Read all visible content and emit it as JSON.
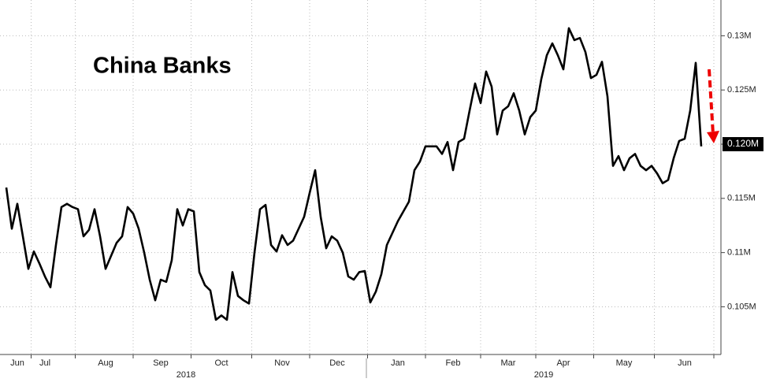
{
  "chart_data": {
    "type": "line",
    "title": "China Banks",
    "categories": [
      null,
      null,
      "Jun",
      null,
      null,
      null,
      null,
      "Jul",
      null,
      null,
      null,
      null,
      null,
      null,
      null,
      null,
      null,
      null,
      "Aug",
      null,
      null,
      null,
      null,
      null,
      null,
      null,
      null,
      null,
      "Sep",
      null,
      null,
      null,
      null,
      null,
      null,
      null,
      null,
      null,
      null,
      "Oct",
      null,
      null,
      null,
      null,
      null,
      null,
      null,
      null,
      null,
      null,
      "Nov",
      null,
      null,
      null,
      null,
      null,
      null,
      null,
      null,
      null,
      "Dec",
      null,
      null,
      null,
      null,
      null,
      null,
      null,
      null,
      null,
      null,
      "Jan",
      null,
      null,
      null,
      null,
      null,
      null,
      null,
      null,
      null,
      "Feb",
      null,
      null,
      null,
      null,
      null,
      null,
      null,
      null,
      null,
      "Mar",
      null,
      null,
      null,
      null,
      null,
      null,
      null,
      null,
      null,
      "Apr",
      null,
      null,
      null,
      null,
      null,
      null,
      null,
      null,
      null,
      null,
      "May",
      null,
      null,
      null,
      null,
      null,
      null,
      null,
      null,
      null,
      null,
      "Jun",
      null,
      null,
      null
    ],
    "x_group_labels": [
      "2018",
      "2019"
    ],
    "series": [
      {
        "name": "China Banks",
        "color": "#000000",
        "values": [
          0.116,
          0.1122,
          0.1145,
          0.1115,
          0.1085,
          0.1101,
          0.109,
          0.1078,
          0.1068,
          0.1107,
          0.1142,
          0.1145,
          0.1142,
          0.114,
          0.1115,
          0.1121,
          0.114,
          0.1115,
          0.1085,
          0.1097,
          0.1109,
          0.1115,
          0.1142,
          0.1136,
          0.1122,
          0.11,
          0.1075,
          0.1056,
          0.1075,
          0.1073,
          0.1093,
          0.114,
          0.1125,
          0.114,
          0.1138,
          0.1082,
          0.107,
          0.1065,
          0.1038,
          0.1042,
          0.1038,
          0.1082,
          0.106,
          0.1056,
          0.1053,
          0.11,
          0.114,
          0.1144,
          0.1107,
          0.1101,
          0.1116,
          0.1107,
          0.1111,
          0.1122,
          0.1133,
          0.1155,
          0.1176,
          0.1133,
          0.1104,
          0.1115,
          0.1111,
          0.11,
          0.1078,
          0.1075,
          0.1082,
          0.1083,
          0.1054,
          0.1064,
          0.108,
          0.1107,
          0.1118,
          0.1129,
          0.1138,
          0.1147,
          0.1176,
          0.1184,
          0.1198,
          0.1198,
          0.1198,
          0.1191,
          0.1202,
          0.1176,
          0.1202,
          0.1205,
          0.1231,
          0.1256,
          0.1238,
          0.1267,
          0.1253,
          0.1209,
          0.1231,
          0.1235,
          0.1247,
          0.1231,
          0.1209,
          0.1225,
          0.1231,
          0.126,
          0.1282,
          0.1293,
          0.1282,
          0.1269,
          0.1307,
          0.1296,
          0.1298,
          0.1285,
          0.1261,
          0.1264,
          0.1276,
          0.1244,
          0.118,
          0.1189,
          0.1176,
          0.1187,
          0.1191,
          0.118,
          0.1176,
          0.118,
          0.1173,
          0.1164,
          0.1167,
          0.1187,
          0.1203,
          0.1205,
          0.1231,
          0.1275,
          0.1198
        ]
      }
    ],
    "ylim": [
      0.1006,
      0.1333
    ],
    "yticks": [
      {
        "value": 0.105,
        "label": "0.105M"
      },
      {
        "value": 0.11,
        "label": "0.11M"
      },
      {
        "value": 0.115,
        "label": "0.115M"
      },
      {
        "value": 0.12,
        "label": "0.120M"
      },
      {
        "value": 0.125,
        "label": "0.125M"
      },
      {
        "value": 0.13,
        "label": "0.13M"
      }
    ],
    "grid": true
  }
}
